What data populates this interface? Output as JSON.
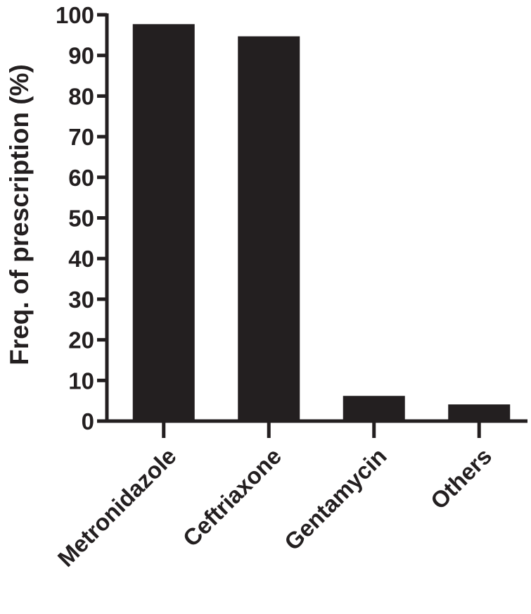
{
  "chart_data": {
    "type": "bar",
    "title": "",
    "xlabel": "",
    "ylabel": "Freq. of prescription (%)",
    "categories": [
      "Metronidazole",
      "Ceftriaxone",
      "Gentamycin",
      "Others"
    ],
    "values": [
      97.7,
      94.7,
      6.2,
      4.1
    ],
    "ylim": [
      0,
      100
    ],
    "yticks": [
      0,
      10,
      20,
      30,
      40,
      50,
      60,
      70,
      80,
      90,
      100
    ],
    "grid": false,
    "legend": "none",
    "bar_color": "#231f20",
    "axis_color": "#231f20"
  }
}
